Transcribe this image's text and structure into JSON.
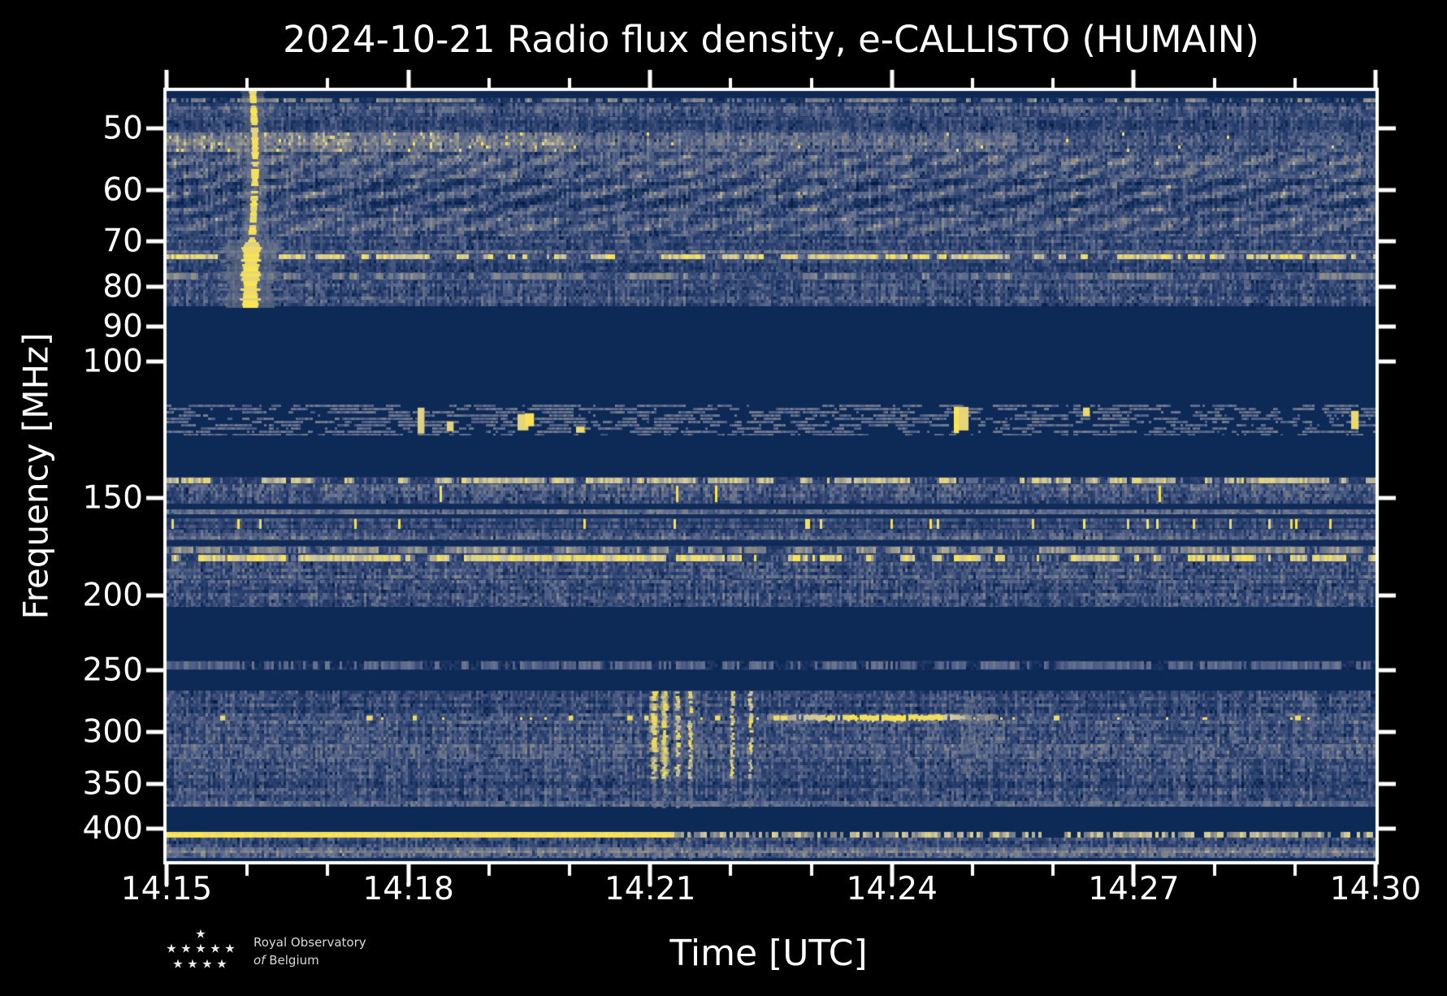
{
  "title": "2024-10-21 Radio flux density, e-CALLISTO (HUMAIN)",
  "axes": {
    "x_label": "Time [UTC]",
    "y_label": "Frequency [MHz]",
    "x_tick_labels": [
      "14:15",
      "14:18",
      "14:21",
      "14:24",
      "14:27",
      "14:30"
    ],
    "x_major_minutes": [
      0,
      3,
      6,
      9,
      12,
      15
    ],
    "x_minor_every_min": 1,
    "y_tick_values": [
      50,
      60,
      70,
      80,
      90,
      100,
      150,
      200,
      250,
      300,
      350,
      400
    ],
    "y_tick_labels": [
      "50",
      "60",
      "70",
      "80",
      "90",
      "100",
      "150",
      "200",
      "250",
      "300",
      "350",
      "400"
    ],
    "y_scale": "log"
  },
  "logo": {
    "line1": "Royal Observatory",
    "line2_italic": "of",
    "line2_rest": "Belgium"
  },
  "colors": {
    "background": "#000000",
    "axis": "#ffffff",
    "plot_low": "#0d2956",
    "plot_mid": "#5f6c8e",
    "plot_warm": "#8d8d85",
    "plot_pale": "#cdc5a1",
    "plot_high": "#ffe64b"
  },
  "chart_data": {
    "type": "heatmap",
    "subtype": "radio-spectrogram",
    "title": "2024-10-21 Radio flux density, e-CALLISTO (HUMAIN)",
    "date": "2024-10-21",
    "station": "e-CALLISTO (HUMAIN)",
    "xlabel": "Time [UTC]",
    "ylabel": "Frequency [MHz]",
    "time_start_utc": "14:15",
    "time_end_utc": "14:30",
    "duration_min": 15,
    "freq_min_mhz": 44.75,
    "freq_max_mhz": 440.6,
    "colormap_stops": [
      [
        0.0,
        "#081c40"
      ],
      [
        0.13,
        "#0d2956"
      ],
      [
        0.35,
        "#2e4371"
      ],
      [
        0.55,
        "#5f6c8e"
      ],
      [
        0.72,
        "#8d8d85"
      ],
      [
        0.85,
        "#cdc5a1"
      ],
      [
        1.0,
        "#ffe64b"
      ]
    ],
    "bands": [
      {
        "f_mhz": [
          44.75,
          45.6
        ],
        "style": "solid",
        "level": 0.12
      },
      {
        "f_mhz": [
          45.6,
          46.4
        ],
        "style": "dashrow",
        "density": 0.5,
        "bright": 0.78,
        "base": 0.2
      },
      {
        "f_mhz": [
          46.4,
          48.3
        ],
        "style": "noise",
        "level": 0.44,
        "var": 0.26
      },
      {
        "f_mhz": [
          48.3,
          50.6
        ],
        "style": "noise",
        "level": 0.33,
        "var": 0.22
      },
      {
        "f_mhz": [
          50.6,
          53.6
        ],
        "style": "noise",
        "level": 0.56,
        "var": 0.26,
        "fade": [
          0.62,
          0.53,
          0.42
        ],
        "speckle": 0.04
      },
      {
        "f_mhz": [
          53.6,
          58.0
        ],
        "style": "noise",
        "level": 0.46,
        "var": 0.26,
        "wave": [
          55,
          0.1
        ]
      },
      {
        "f_mhz": [
          58.0,
          64.0
        ],
        "style": "noise",
        "level": 0.4,
        "var": 0.3,
        "wave": [
          85,
          0.14
        ]
      },
      {
        "f_mhz": [
          64.0,
          69.0
        ],
        "style": "noise",
        "level": 0.44,
        "var": 0.24,
        "wave": [
          70,
          0.1
        ]
      },
      {
        "f_mhz": [
          69.0,
          71.8
        ],
        "style": "noise",
        "level": 0.36,
        "var": 0.24
      },
      {
        "f_mhz": [
          71.8,
          72.5
        ],
        "style": "noise",
        "level": 0.52,
        "var": 0.18
      },
      {
        "f_mhz": [
          72.5,
          74.0
        ],
        "style": "dashrow",
        "density": 0.55,
        "bright": 1.0,
        "base": 0.38
      },
      {
        "f_mhz": [
          74.0,
          76.6
        ],
        "style": "noise",
        "level": 0.37,
        "var": 0.24
      },
      {
        "f_mhz": [
          76.6,
          78.6
        ],
        "style": "dashrow",
        "density": 0.45,
        "bright": 0.75,
        "base": 0.4
      },
      {
        "f_mhz": [
          78.6,
          84.9
        ],
        "style": "noise",
        "level": 0.41,
        "var": 0.28
      },
      {
        "f_mhz": [
          84.9,
          113.5
        ],
        "style": "solid",
        "level": 0.13
      },
      {
        "f_mhz": [
          113.5,
          124.5
        ],
        "style": "speckle",
        "grayDensity": 0.5,
        "blobDensity": 0.012,
        "clusters_min": [
          3.65,
          4.35,
          9.7
        ]
      },
      {
        "f_mhz": [
          124.5,
          140.8
        ],
        "style": "solid",
        "level": 0.13
      },
      {
        "f_mhz": [
          140.8,
          144.0
        ],
        "style": "dashrow",
        "density": 0.6,
        "bright": 0.95,
        "base": 0.3
      },
      {
        "f_mhz": [
          144.0,
          152.5
        ],
        "style": "noise",
        "level": 0.43,
        "var": 0.3,
        "ybars": 0.04
      },
      {
        "f_mhz": [
          152.5,
          155.1
        ],
        "style": "solid",
        "level": 0.15
      },
      {
        "f_mhz": [
          155.1,
          157.4
        ],
        "style": "noise",
        "level": 0.58,
        "var": 0.14
      },
      {
        "f_mhz": [
          157.4,
          159.3
        ],
        "style": "solid",
        "level": 0.16
      },
      {
        "f_mhz": [
          159.3,
          164.8
        ],
        "style": "bars",
        "level": 0.34,
        "var": 0.22,
        "barDensity": 0.05
      },
      {
        "f_mhz": [
          164.8,
          170.1
        ],
        "style": "noise",
        "level": 0.47,
        "var": 0.24
      },
      {
        "f_mhz": [
          170.1,
          173.0
        ],
        "style": "solid",
        "level": 0.15
      },
      {
        "f_mhz": [
          173.0,
          177.2
        ],
        "style": "dashrow",
        "density": 0.6,
        "bright": 0.8,
        "base": 0.35
      },
      {
        "f_mhz": [
          177.2,
          181.5
        ],
        "style": "dashrow",
        "density": 0.55,
        "bright": 1.0,
        "base": 0.32
      },
      {
        "f_mhz": [
          181.5,
          191.0
        ],
        "style": "noise",
        "level": 0.42,
        "var": 0.28
      },
      {
        "f_mhz": [
          191.0,
          207.0
        ],
        "style": "noise",
        "level": 0.4,
        "var": 0.3
      },
      {
        "f_mhz": [
          207.0,
          242.7
        ],
        "style": "solid",
        "level": 0.13
      },
      {
        "f_mhz": [
          242.7,
          250.0
        ],
        "style": "dashrow",
        "density": 0.55,
        "bright": 0.62,
        "base": 0.2
      },
      {
        "f_mhz": [
          250.0,
          265.4
        ],
        "style": "solid",
        "level": 0.13
      },
      {
        "f_mhz": [
          265.4,
          286.5
        ],
        "style": "noise",
        "level": 0.39,
        "var": 0.28
      },
      {
        "f_mhz": [
          286.5,
          290.5
        ],
        "style": "dotrow",
        "level": 0.36,
        "var": 0.2,
        "dotDensity": 0.028
      },
      {
        "f_mhz": [
          290.5,
          311.0
        ],
        "style": "noise",
        "level": 0.43,
        "var": 0.28
      },
      {
        "f_mhz": [
          311.0,
          325.0
        ],
        "style": "noise",
        "level": 0.5,
        "var": 0.26
      },
      {
        "f_mhz": [
          325.0,
          369.0
        ],
        "style": "noise",
        "level": 0.39,
        "var": 0.28
      },
      {
        "f_mhz": [
          369.0,
          374.6
        ],
        "style": "noise",
        "level": 0.52,
        "var": 0.14
      },
      {
        "f_mhz": [
          374.6,
          402.7
        ],
        "style": "solid",
        "level": 0.13
      },
      {
        "f_mhz": [
          402.7,
          411.0
        ],
        "style": "solid",
        "level": 0.13
      },
      {
        "f_mhz": [
          411.0,
          423.0
        ],
        "style": "noise",
        "level": 0.41,
        "var": 0.26
      },
      {
        "f_mhz": [
          423.0,
          430.0
        ],
        "style": "noise",
        "level": 0.58,
        "var": 0.14
      },
      {
        "f_mhz": [
          430.0,
          436.5
        ],
        "style": "noise",
        "level": 0.45,
        "var": 0.26
      },
      {
        "f_mhz": [
          436.5,
          440.6
        ],
        "style": "solid",
        "level": 0.12
      }
    ],
    "features": [
      {
        "type": "burst",
        "t_center_min": 1.07,
        "f_mhz": [
          44.75,
          84.9
        ],
        "core_f_mhz": [
          69,
          84.9
        ],
        "intensity": 1.0
      },
      {
        "type": "burst-group",
        "streaks_min": [
          [
            6.05,
            1.0
          ],
          [
            6.18,
            0.9
          ],
          [
            6.34,
            0.75
          ],
          [
            6.5,
            0.6
          ],
          [
            7.02,
            0.5
          ],
          [
            7.25,
            0.4
          ]
        ],
        "wash_min": [
          5.98,
          6.7
        ],
        "f_mhz": [
          266,
          436
        ],
        "core_f_mhz": [
          266,
          345
        ]
      },
      {
        "type": "hline",
        "f_mhz": [
          403.5,
          410.5
        ],
        "solid_until_min": 6.3,
        "dashed_after": true,
        "intensity": 1.0
      },
      {
        "type": "hstreak",
        "f_center_mhz": 287.5,
        "t_min": [
          7.45,
          10.3
        ],
        "peak_t_min": [
          8.4,
          9.6
        ],
        "intensity": 0.9
      },
      {
        "type": "dotrow",
        "f_center_mhz": 288,
        "t_min": [
          0,
          15
        ],
        "density": 0.02
      },
      {
        "type": "faint-column",
        "t_min": [
          9.85,
          10.15
        ],
        "f_mhz": [
          270,
          340
        ],
        "intensity": 0.55
      }
    ]
  }
}
